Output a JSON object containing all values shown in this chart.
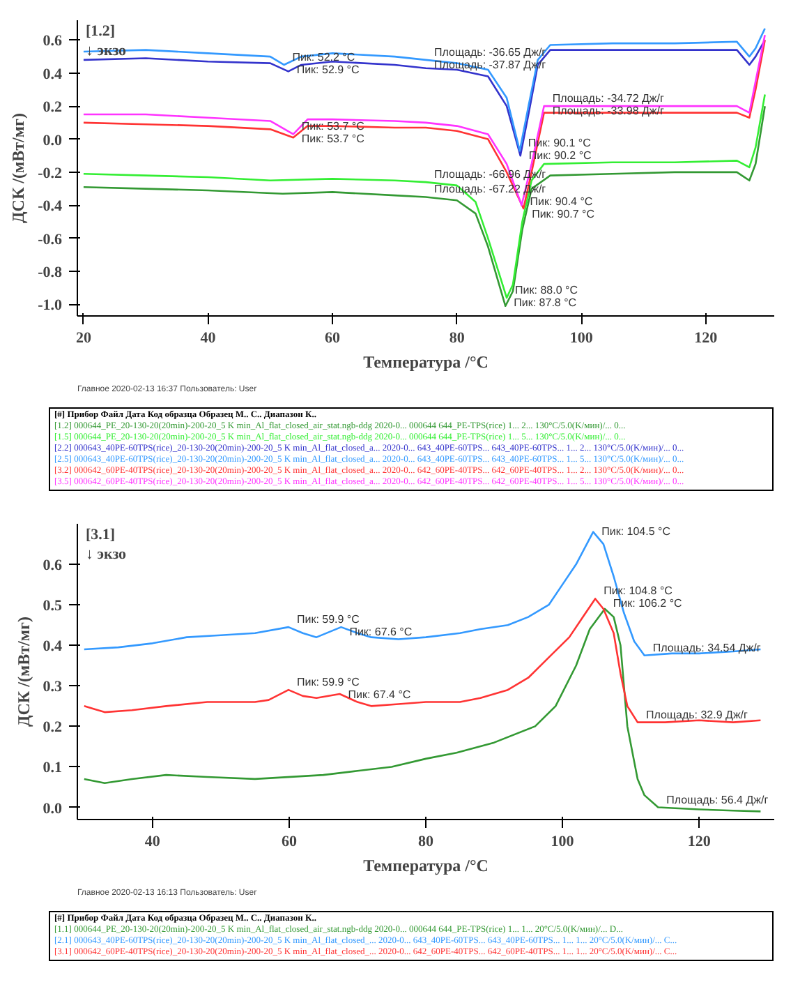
{
  "chart_data": [
    {
      "type": "line",
      "xlabel": "Температура /°C",
      "ylabel": "ДСК /(мВт/мг)",
      "xlim": [
        19,
        131
      ],
      "ylim": [
        -1.07,
        0.72
      ],
      "xticks": [
        20,
        40,
        60,
        80,
        100,
        120
      ],
      "yticks": [
        {
          "value": -1.0,
          "label": "-1.0"
        },
        {
          "value": -0.8,
          "label": "-0.8"
        },
        {
          "value": -0.6,
          "label": "-0.6"
        },
        {
          "value": -0.4,
          "label": "-0.4"
        },
        {
          "value": -0.2,
          "label": "-0.2"
        },
        {
          "value": 0.0,
          "label": "0.0"
        },
        {
          "value": 0.2,
          "label": "0.2"
        },
        {
          "value": 0.4,
          "label": "0.4"
        },
        {
          "value": 0.6,
          "label": "0.6"
        }
      ],
      "grid": false,
      "legend": "bottom",
      "legend_title": "[#] Прибор   Файл   Дата   Код образца   Образец   М..   С..   Диапазон   К..",
      "series": [
        {
          "name": "[1.2]  000644_PE_20-130-20(20min)-200-20_5 K min_Al_flat_closed_air_stat.ngb-ddg   2020-0...   000644   644_PE-TPS(rice)   1...   2...   130°C/5.0(K/мин)/...   0...",
          "color": "#339933",
          "x": [
            20,
            30,
            40,
            52,
            60,
            70,
            75,
            80,
            83,
            85,
            87.8,
            89,
            90.5,
            92,
            95,
            105,
            115,
            125,
            127,
            128,
            129.5
          ],
          "values": [
            -0.29,
            -0.3,
            -0.31,
            -0.33,
            -0.32,
            -0.34,
            -0.35,
            -0.37,
            -0.45,
            -0.65,
            -1.01,
            -0.92,
            -0.55,
            -0.3,
            -0.22,
            -0.21,
            -0.2,
            -0.2,
            -0.25,
            -0.15,
            0.2
          ]
        },
        {
          "name": "[1.5]  000644_PE_20-130-20(20min)-200-20_5 K min_Al_flat_closed_air_stat.ngb-ddg   2020-0...   000644   644_PE-TPS(rice)   1...   5...   130°C/5.0(K/мин)/...   0...",
          "color": "#33ee33",
          "x": [
            20,
            30,
            40,
            50,
            60,
            70,
            75,
            80,
            83,
            85,
            88,
            89,
            90.5,
            92,
            94,
            105,
            115,
            125,
            127,
            128,
            129.5
          ],
          "values": [
            -0.21,
            -0.22,
            -0.23,
            -0.25,
            -0.24,
            -0.25,
            -0.26,
            -0.28,
            -0.38,
            -0.6,
            -0.96,
            -0.88,
            -0.5,
            -0.25,
            -0.15,
            -0.14,
            -0.14,
            -0.13,
            -0.17,
            -0.05,
            0.27
          ]
        },
        {
          "name": "[2.2]  000643_40PE-60TPS(rice)_20-130-20(20min)-200-20_5 K min_Al_flat_closed_a...   2020-0...   643_40PE-60TPS...   643_40PE-60TPS...   1...   2...   130°C/5.0(K/мин)/...   0...",
          "color": "#3333cc",
          "x": [
            20,
            30,
            40,
            50,
            52.9,
            55,
            60,
            70,
            75,
            80,
            85,
            88,
            90.2,
            91.5,
            93,
            95,
            105,
            115,
            125,
            127,
            128,
            129.5
          ],
          "values": [
            0.48,
            0.49,
            0.47,
            0.46,
            0.41,
            0.45,
            0.47,
            0.45,
            0.43,
            0.42,
            0.38,
            0.2,
            -0.1,
            0.15,
            0.45,
            0.54,
            0.54,
            0.54,
            0.54,
            0.45,
            0.5,
            0.6
          ]
        },
        {
          "name": "[2.5]  000643_40PE-60TPS(rice)_20-130-20(20min)-200-20_5 K min_Al_flat_closed_a...   2020-0...   643_40PE-60TPS...   643_40PE-60TPS...   1...   5...   130°C/5.0(K/мин)/...   0...",
          "color": "#3399ff",
          "x": [
            20,
            30,
            40,
            50,
            52.2,
            55,
            60,
            70,
            75,
            80,
            85,
            88,
            90.1,
            91.5,
            93,
            95,
            105,
            115,
            125,
            127,
            128,
            129.5
          ],
          "values": [
            0.53,
            0.54,
            0.52,
            0.5,
            0.45,
            0.5,
            0.52,
            0.5,
            0.48,
            0.46,
            0.42,
            0.25,
            -0.07,
            0.2,
            0.48,
            0.57,
            0.58,
            0.58,
            0.59,
            0.5,
            0.55,
            0.67
          ]
        },
        {
          "name": "[3.2]  000642_60PE-40TPS(rice)_20-130-20(20min)-200-20_5 K min_Al_flat_closed_a...   2020-0...   642_60PE-40TPS...   642_60PE-40TPS...   1...   2...   130°C/5.0(K/мин)/...   0...",
          "color": "#ff3333",
          "x": [
            20,
            30,
            40,
            50,
            53.7,
            56,
            60,
            70,
            75,
            80,
            85,
            88,
            90.7,
            92,
            94,
            105,
            115,
            125,
            127,
            128,
            129.5
          ],
          "values": [
            0.1,
            0.09,
            0.08,
            0.06,
            0.01,
            0.08,
            0.08,
            0.07,
            0.07,
            0.05,
            0.0,
            -0.2,
            -0.42,
            -0.2,
            0.16,
            0.16,
            0.16,
            0.16,
            0.13,
            0.3,
            0.6
          ]
        },
        {
          "name": "[3.5]  000642_60PE-40TPS(rice)_20-130-20(20min)-200-20_5 K min_Al_flat_closed_a...   2020-0...   642_60PE-40TPS...   642_60PE-40TPS...   1...   5...   130°C/5.0(K/мин)/...   0...",
          "color": "#ff33ff",
          "x": [
            20,
            30,
            40,
            50,
            53.7,
            56,
            60,
            70,
            75,
            80,
            85,
            88,
            90.4,
            92,
            94,
            105,
            115,
            125,
            127,
            128,
            129.5
          ],
          "values": [
            0.15,
            0.15,
            0.13,
            0.11,
            0.03,
            0.12,
            0.12,
            0.11,
            0.1,
            0.08,
            0.03,
            -0.15,
            -0.4,
            -0.15,
            0.2,
            0.2,
            0.2,
            0.2,
            0.16,
            0.35,
            0.63
          ]
        }
      ],
      "annotations": [
        {
          "text": "Пик: 52.2 °C",
          "x": 52.2,
          "y": 0.45
        },
        {
          "text": "Пик: 52.9 °C",
          "x": 52.9,
          "y": 0.41
        },
        {
          "text": "Площадь: -36.65 Дж/г",
          "x": 75,
          "y": 0.48
        },
        {
          "text": "Площадь: -37.87 Дж/г",
          "x": 75,
          "y": 0.43
        },
        {
          "text": "Площадь: -34.72 Дж/г",
          "x": 94,
          "y": 0.2
        },
        {
          "text": "Площадь: -33.98 Дж/г",
          "x": 94,
          "y": 0.16
        },
        {
          "text": "Пик: 53.7 °C",
          "x": 53.7,
          "y": 0.03
        },
        {
          "text": "Пик: 53.7 °C",
          "x": 53.7,
          "y": 0.01
        },
        {
          "text": "Пик: 90.1 °C",
          "x": 90.1,
          "y": -0.07
        },
        {
          "text": "Пик: 90.2 °C",
          "x": 90.2,
          "y": -0.1
        },
        {
          "text": "Площадь: -66.96 Дж/г",
          "x": 75,
          "y": -0.26
        },
        {
          "text": "Площадь: -67.22 Дж/г",
          "x": 75,
          "y": -0.35
        },
        {
          "text": "Пик: 90.4 °C",
          "x": 90.4,
          "y": -0.4
        },
        {
          "text": "Пик: 90.7 °C",
          "x": 90.7,
          "y": -0.42
        },
        {
          "text": "Пик: 88.0 °C",
          "x": 88,
          "y": -0.96
        },
        {
          "text": "Пик: 87.8 °C",
          "x": 87.8,
          "y": -1.01
        },
        "[1.2]",
        "↓ экзо",
        "Главное    2020-02-13 16:37    Пользователь: User"
      ]
    },
    {
      "type": "line",
      "xlabel": "Температура /°C",
      "ylabel": "ДСК /(мВт/мг)",
      "xlim": [
        29,
        131
      ],
      "ylim": [
        -0.03,
        0.7
      ],
      "xticks": [
        40,
        60,
        80,
        100,
        120
      ],
      "yticks": [
        {
          "value": 0.0,
          "label": "0.0"
        },
        0.1,
        0.2,
        0.3,
        0.4,
        0.5,
        0.6
      ],
      "grid": false,
      "legend": "bottom",
      "legend_title": "[#] Прибор   Файл   Дата   Код образца   Образец   М..   С..   Диапазон   К..",
      "series": [
        {
          "name": "[1.1]  000644_PE_20-130-20(20min)-200-20_5 K min_Al_flat_closed_air_stat.ngb-ddg   2020-0...   000644   644_PE-TPS(rice)   1...   1...   20°C/5.0(K/мин)/...   D...",
          "color": "#339933",
          "x": [
            30,
            33,
            37,
            42,
            48,
            55,
            65,
            70,
            75,
            80,
            84.5,
            90,
            96,
            99,
            102,
            104,
            106.2,
            107.5,
            108.5,
            109.5,
            111,
            112,
            114,
            120,
            125,
            129
          ],
          "values": [
            0.07,
            0.06,
            0.07,
            0.08,
            0.075,
            0.07,
            0.08,
            0.09,
            0.1,
            0.12,
            0.135,
            0.16,
            0.2,
            0.25,
            0.35,
            0.44,
            0.49,
            0.47,
            0.4,
            0.2,
            0.07,
            0.03,
            0.0,
            -0.005,
            -0.008,
            -0.01
          ]
        },
        {
          "name": "[2.1]  000643_40PE-60TPS(rice)_20-130-20(20min)-200-20_5 K min_Al_flat_closed_...   2020-0...   643_40PE-60TPS...   643_40PE-60TPS...   1...   1...   20°C/5.0(K/мин)/...   C...",
          "color": "#3399ff",
          "x": [
            30,
            35,
            40,
            45,
            50,
            55,
            59.9,
            62,
            64,
            67.6,
            70,
            72,
            76,
            80,
            85,
            88,
            92,
            95,
            98,
            100,
            102,
            104.5,
            106,
            107.5,
            109,
            110.5,
            112,
            116,
            120,
            125,
            129
          ],
          "values": [
            0.39,
            0.395,
            0.405,
            0.42,
            0.425,
            0.43,
            0.445,
            0.43,
            0.42,
            0.445,
            0.43,
            0.42,
            0.415,
            0.42,
            0.43,
            0.44,
            0.45,
            0.47,
            0.5,
            0.55,
            0.6,
            0.68,
            0.65,
            0.57,
            0.48,
            0.41,
            0.375,
            0.38,
            0.38,
            0.385,
            0.39
          ]
        },
        {
          "name": "[3.1]  000642_60PE-40TPS(rice)_20-130-20(20min)-200-20_5 K min_Al_flat_closed_...   2020-0...   642_60PE-40TPS...   642_60PE-40TPS...   1...   1...   20°C/5.0(K/мин)/...   C...",
          "color": "#ff3333",
          "x": [
            30,
            33,
            37,
            42,
            48,
            55,
            57,
            59.9,
            62,
            64,
            67.4,
            70,
            72,
            76,
            80,
            85,
            88,
            92,
            95,
            98,
            101,
            103,
            104.8,
            106,
            107.5,
            108.5,
            109.5,
            111,
            115,
            120,
            125,
            129
          ],
          "values": [
            0.25,
            0.235,
            0.24,
            0.25,
            0.26,
            0.26,
            0.265,
            0.29,
            0.275,
            0.27,
            0.28,
            0.26,
            0.25,
            0.255,
            0.26,
            0.26,
            0.27,
            0.29,
            0.32,
            0.37,
            0.42,
            0.47,
            0.515,
            0.49,
            0.43,
            0.33,
            0.25,
            0.21,
            0.21,
            0.215,
            0.21,
            0.215
          ]
        }
      ],
      "annotations": [
        {
          "text": "Пик: 104.5 °C",
          "x": 104.5,
          "y": 0.68
        },
        {
          "text": "Пик: 104.8 °C",
          "x": 104.8,
          "y": 0.515
        },
        {
          "text": "Пик: 106.2 °C",
          "x": 106.2,
          "y": 0.49
        },
        {
          "text": "Площадь: 34.54 Дж/г",
          "x": 112,
          "y": 0.375
        },
        {
          "text": "Пик: 59.9 °C",
          "x": 59.9,
          "y": 0.445
        },
        {
          "text": "Пик: 67.6 °C",
          "x": 67.6,
          "y": 0.445
        },
        {
          "text": "Пик: 59.9 °C",
          "x": 59.9,
          "y": 0.29
        },
        {
          "text": "Пик: 67.4 °C",
          "x": 67.4,
          "y": 0.28
        },
        {
          "text": "Площадь: 32.9 Дж/г",
          "x": 111,
          "y": 0.21
        },
        {
          "text": "Площадь: 56.4 Дж/г",
          "x": 114,
          "y": 0.0
        },
        "[3.1]",
        "↓ экзо",
        "Главное    2020-02-13 16:13    Пользователь: User"
      ]
    }
  ]
}
